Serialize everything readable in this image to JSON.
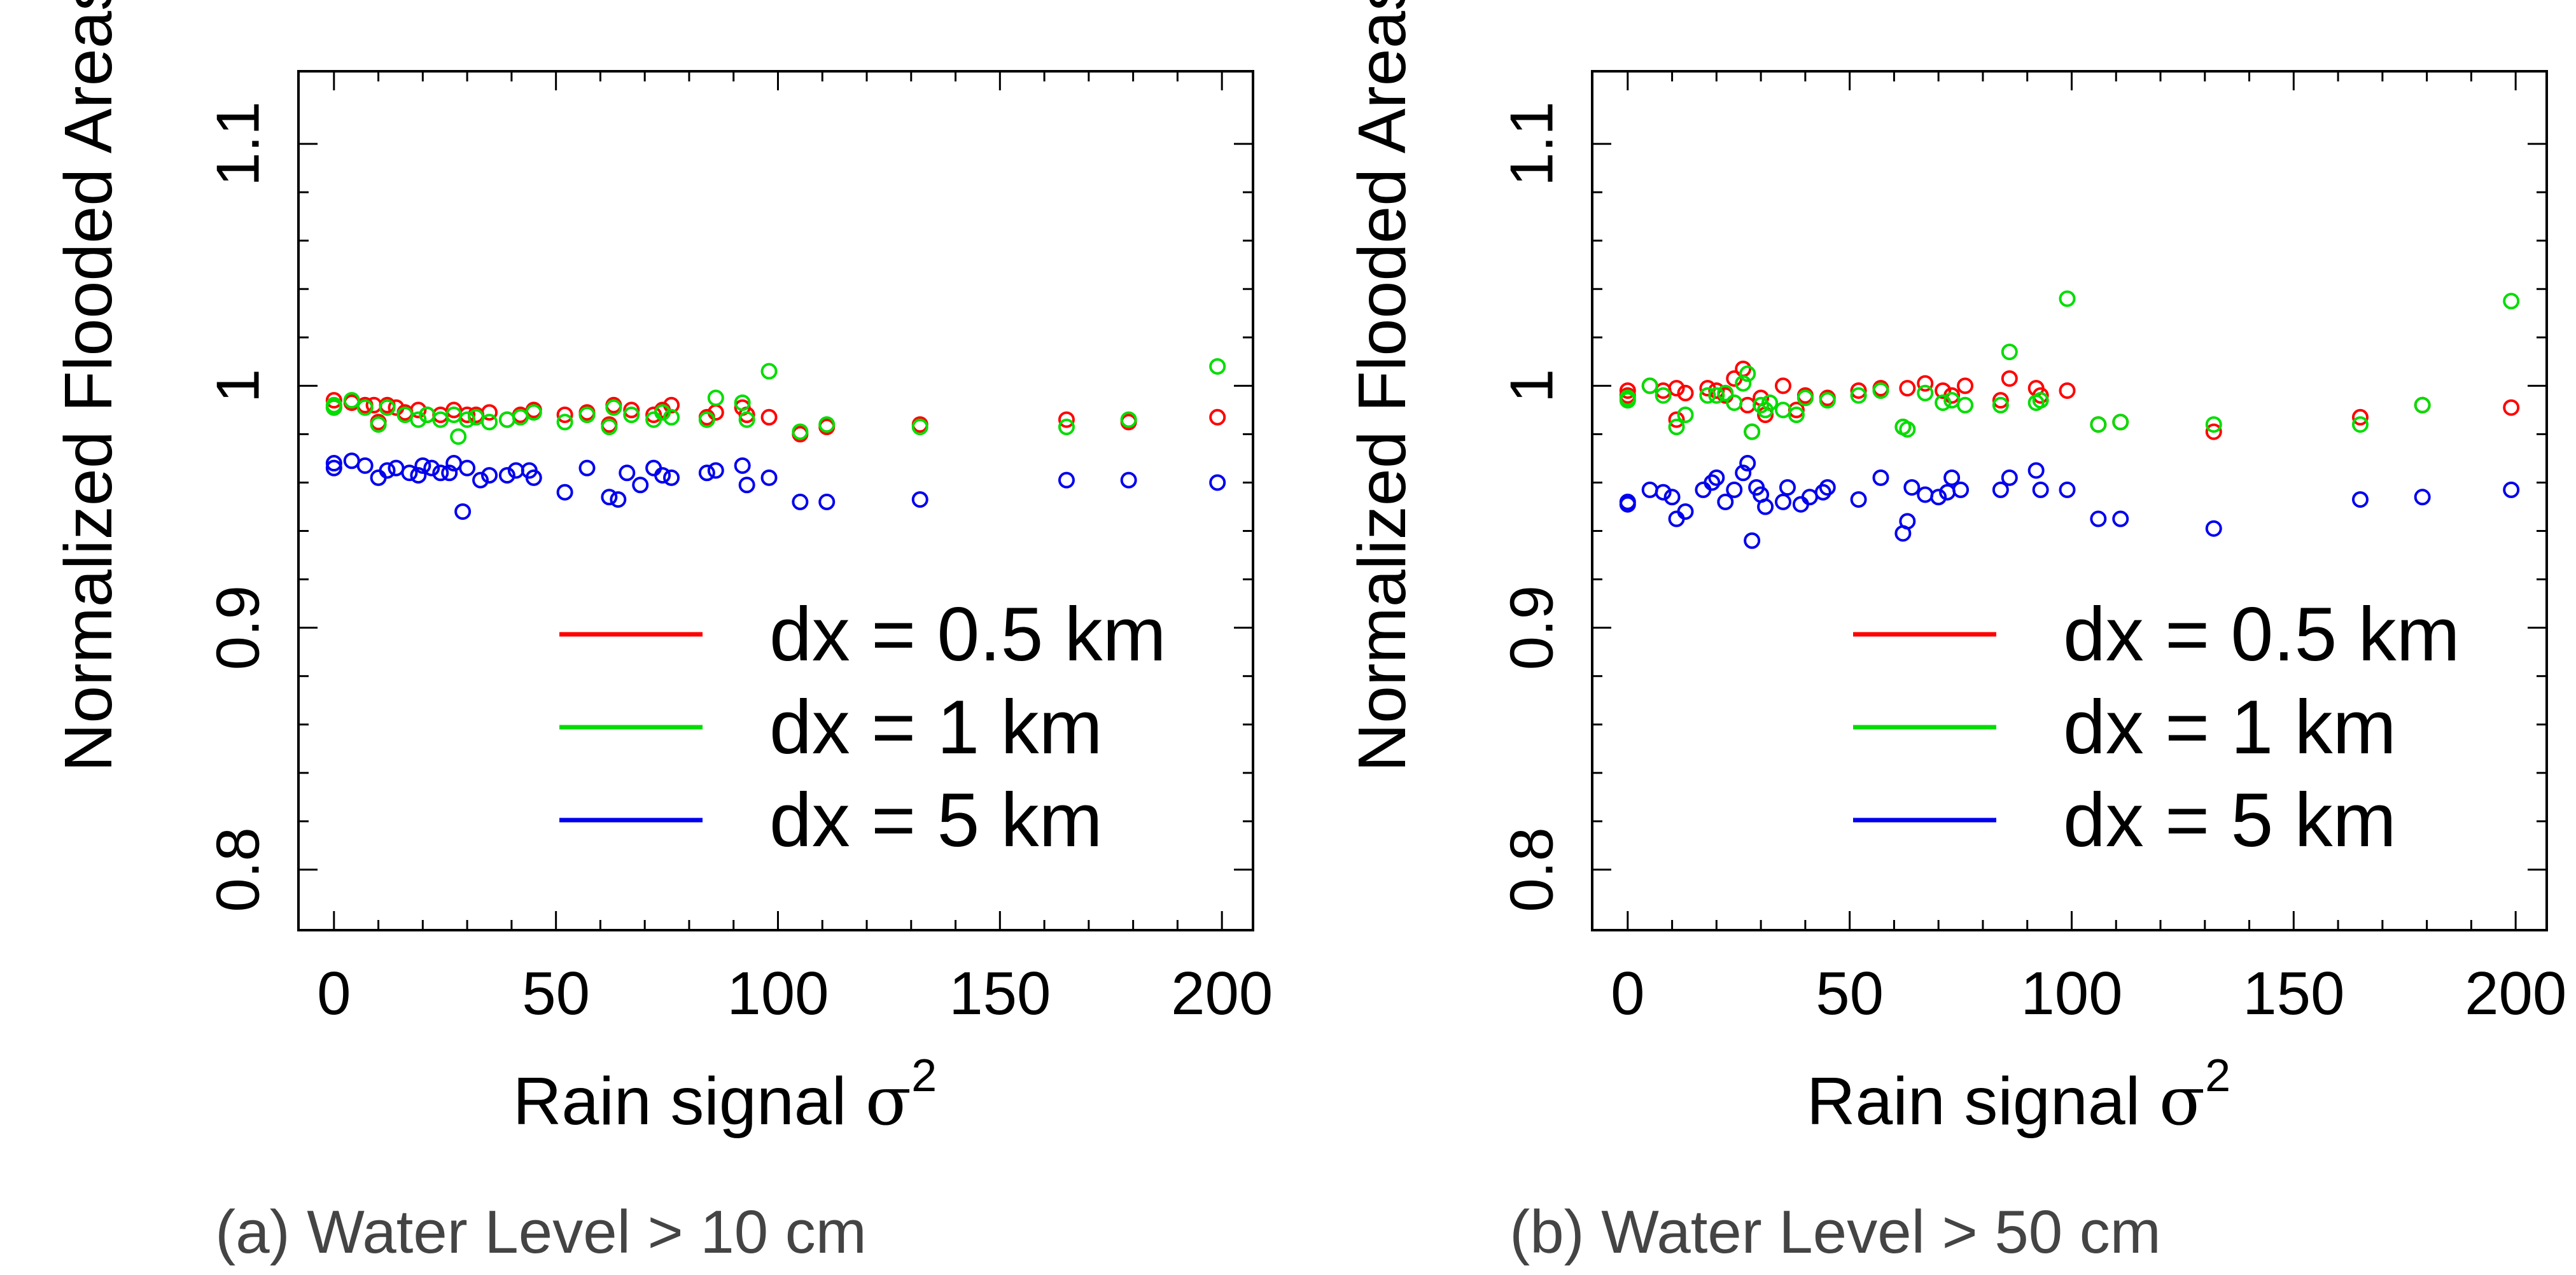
{
  "figure": {
    "captions": [
      "(a) Water Level > 10 cm",
      "(b) Water Level > 50 cm"
    ]
  },
  "chart_data": [
    {
      "type": "scatter",
      "caption": "(a) Water Level > 10 cm",
      "xlabel": "Rain signal",
      "xlabel_symbol": "σ",
      "xlabel_exponent": "2",
      "ylabel": "Normalized Flooded Areas [-]",
      "xlim": [
        -8,
        207
      ],
      "ylim": [
        0.775,
        1.13
      ],
      "xticks": [
        0,
        50,
        100,
        150,
        200
      ],
      "xtick_labels": [
        "0",
        "50",
        "100",
        "150",
        "200"
      ],
      "yticks": [
        0.8,
        0.9,
        1.0,
        1.1
      ],
      "ytick_labels": [
        "0.8",
        "0.9",
        "1",
        "1.1"
      ],
      "legend_position": "bottom-right",
      "series": [
        {
          "name": "dx = 0.5 km",
          "color": "#ff0000",
          "x": [
            0,
            0,
            4,
            7,
            9,
            10,
            12,
            14,
            16,
            19,
            21,
            24,
            27,
            30,
            32,
            35,
            39,
            42,
            45,
            52,
            57,
            62,
            63,
            67,
            72,
            74,
            76,
            84,
            86,
            92,
            93,
            98,
            105,
            111,
            132,
            165,
            179,
            199
          ],
          "y": [
            0.994,
            0.991,
            0.993,
            0.992,
            0.992,
            0.985,
            0.992,
            0.991,
            0.989,
            0.99,
            0.988,
            0.988,
            0.99,
            0.988,
            0.988,
            0.989,
            0.986,
            0.988,
            0.99,
            0.988,
            0.989,
            0.984,
            0.992,
            0.99,
            0.988,
            0.99,
            0.992,
            0.987,
            0.989,
            0.991,
            0.988,
            0.987,
            0.98,
            0.983,
            0.984,
            0.986,
            0.985,
            0.987
          ]
        },
        {
          "name": "dx = 1 km",
          "color": "#00dd00",
          "x": [
            0,
            0,
            4,
            7,
            10,
            12,
            16,
            19,
            21,
            24,
            27,
            28,
            30,
            32,
            35,
            39,
            42,
            45,
            52,
            57,
            62,
            63,
            67,
            72,
            74,
            76,
            84,
            86,
            92,
            93,
            98,
            105,
            111,
            132,
            165,
            179,
            199
          ],
          "y": [
            0.991,
            0.992,
            0.994,
            0.991,
            0.984,
            0.991,
            0.988,
            0.986,
            0.988,
            0.986,
            0.988,
            0.979,
            0.986,
            0.987,
            0.985,
            0.986,
            0.987,
            0.989,
            0.985,
            0.988,
            0.983,
            0.991,
            0.988,
            0.986,
            0.989,
            0.987,
            0.986,
            0.995,
            0.993,
            0.986,
            1.006,
            0.981,
            0.984,
            0.983,
            0.983,
            0.986,
            1.008
          ]
        },
        {
          "name": "dx = 5 km",
          "color": "#0000ee",
          "x": [
            0,
            0,
            4,
            7,
            10,
            12,
            14,
            17,
            19,
            20,
            22,
            24,
            26,
            27,
            29,
            30,
            33,
            35,
            39,
            41,
            44,
            45,
            52,
            57,
            62,
            64,
            66,
            69,
            72,
            74,
            76,
            84,
            86,
            92,
            93,
            98,
            105,
            111,
            132,
            165,
            179,
            199
          ],
          "y": [
            0.968,
            0.966,
            0.969,
            0.967,
            0.962,
            0.965,
            0.966,
            0.964,
            0.963,
            0.967,
            0.966,
            0.964,
            0.964,
            0.968,
            0.948,
            0.966,
            0.961,
            0.963,
            0.963,
            0.965,
            0.965,
            0.962,
            0.956,
            0.966,
            0.954,
            0.953,
            0.964,
            0.959,
            0.966,
            0.963,
            0.962,
            0.964,
            0.965,
            0.967,
            0.959,
            0.962,
            0.952,
            0.952,
            0.953,
            0.961,
            0.961,
            0.96
          ]
        }
      ]
    },
    {
      "type": "scatter",
      "caption": "(b) Water Level > 50 cm",
      "xlabel": "Rain signal",
      "xlabel_symbol": "σ",
      "xlabel_exponent": "2",
      "ylabel": "Normalized Flooded Areas [-]",
      "xlim": [
        -8,
        207
      ],
      "ylim": [
        0.775,
        1.13
      ],
      "xticks": [
        0,
        50,
        100,
        150,
        200
      ],
      "xtick_labels": [
        "0",
        "50",
        "100",
        "150",
        "200"
      ],
      "yticks": [
        0.8,
        0.9,
        1.0,
        1.1
      ],
      "ytick_labels": [
        "0.8",
        "0.9",
        "1",
        "1.1"
      ],
      "legend_position": "bottom-right",
      "series": [
        {
          "name": "dx = 0.5 km",
          "color": "#ff0000",
          "x": [
            0,
            0,
            5,
            8,
            11,
            11,
            13,
            18,
            20,
            22,
            24,
            26,
            27,
            28,
            30,
            31,
            35,
            38,
            40,
            45,
            52,
            57,
            62,
            63,
            67,
            71,
            73,
            76,
            84,
            86,
            92,
            93,
            99,
            106,
            111,
            132,
            165,
            179,
            199
          ],
          "y": [
            0.998,
            0.996,
            1.0,
            0.998,
            0.999,
            0.986,
            0.997,
            0.999,
            0.998,
            0.996,
            1.003,
            1.007,
            0.992,
            0.981,
            0.995,
            0.988,
            1.0,
            0.99,
            0.996,
            0.995,
            0.998,
            0.999,
            0.983,
            0.999,
            1.001,
            0.998,
            0.996,
            1.0,
            0.994,
            1.003,
            0.999,
            0.996,
            0.998,
            0.984,
            0.985,
            0.981,
            0.987,
            0.992,
            0.991
          ]
        },
        {
          "name": "dx = 1 km",
          "color": "#00dd00",
          "x": [
            0,
            0,
            5,
            8,
            11,
            13,
            18,
            20,
            22,
            24,
            26,
            27,
            28,
            30,
            31,
            32,
            35,
            38,
            40,
            45,
            52,
            57,
            62,
            63,
            67,
            71,
            73,
            76,
            84,
            86,
            92,
            93,
            99,
            106,
            111,
            132,
            165,
            179,
            199
          ],
          "y": [
            0.995,
            0.994,
            1.0,
            0.996,
            0.983,
            0.988,
            0.996,
            0.996,
            0.997,
            0.993,
            1.001,
            1.005,
            0.981,
            0.992,
            0.99,
            0.993,
            0.99,
            0.988,
            0.995,
            0.994,
            0.996,
            0.998,
            0.983,
            0.982,
            0.997,
            0.993,
            0.994,
            0.992,
            0.992,
            1.014,
            0.993,
            0.994,
            1.036,
            0.984,
            0.985,
            0.984,
            0.984,
            0.992,
            1.035
          ]
        },
        {
          "name": "dx = 5 km",
          "color": "#0000ee",
          "x": [
            0,
            0,
            5,
            8,
            10,
            11,
            13,
            17,
            19,
            20,
            22,
            24,
            26,
            27,
            28,
            29,
            30,
            31,
            35,
            36,
            39,
            41,
            44,
            45,
            52,
            57,
            62,
            63,
            64,
            67,
            70,
            72,
            73,
            75,
            84,
            86,
            92,
            93,
            99,
            106,
            111,
            132,
            165,
            179,
            199
          ],
          "y": [
            0.952,
            0.951,
            0.957,
            0.956,
            0.954,
            0.945,
            0.948,
            0.957,
            0.96,
            0.962,
            0.952,
            0.957,
            0.964,
            0.968,
            0.936,
            0.958,
            0.955,
            0.95,
            0.952,
            0.958,
            0.951,
            0.954,
            0.956,
            0.958,
            0.953,
            0.962,
            0.939,
            0.944,
            0.958,
            0.955,
            0.954,
            0.956,
            0.962,
            0.957,
            0.957,
            0.962,
            0.965,
            0.957,
            0.957,
            0.945,
            0.945,
            0.941,
            0.953,
            0.954,
            0.957
          ]
        }
      ]
    }
  ]
}
